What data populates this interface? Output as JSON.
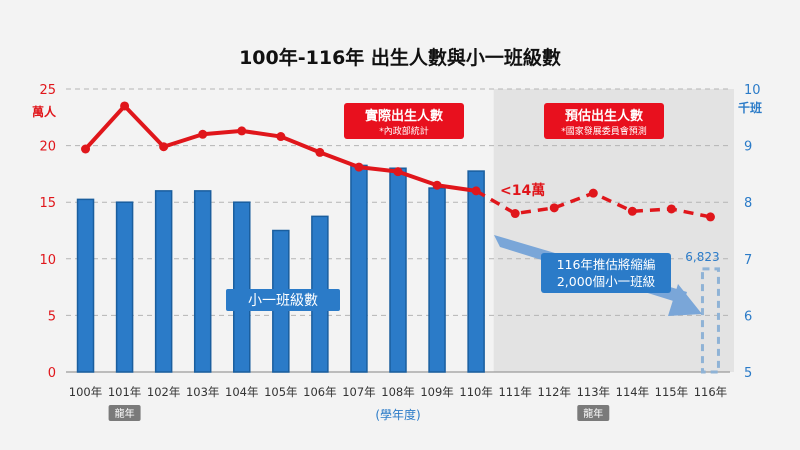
{
  "chart_data": {
    "type": "bar",
    "title": "100年-116年  出生人數與小一班級數",
    "categories": [
      "100年",
      "101年",
      "102年",
      "103年",
      "104年",
      "105年",
      "106年",
      "107年",
      "108年",
      "109年",
      "110年",
      "111年",
      "112年",
      "113年",
      "114年",
      "115年",
      "116年"
    ],
    "xlabel": "(學年度)",
    "y_left": {
      "unit": "萬人",
      "ylim": [
        0,
        25
      ],
      "ticks": [
        0,
        5,
        10,
        15,
        20,
        25
      ]
    },
    "y_right": {
      "unit": "千班",
      "ylim": [
        5,
        10
      ],
      "ticks": [
        5,
        6,
        7,
        8,
        9,
        10
      ]
    },
    "grid": true,
    "series": [
      {
        "name": "小一班級數",
        "type": "bar",
        "axis": "right",
        "values": [
          8.05,
          8.0,
          8.2,
          8.2,
          8.0,
          7.5,
          7.75,
          8.65,
          8.6,
          8.25,
          8.55,
          null,
          null,
          null,
          null,
          null,
          6.823
        ],
        "color": "#2b7bc8",
        "projected_bar_label": "6,823"
      },
      {
        "name": "出生人數",
        "type": "line",
        "axis": "left",
        "values": [
          19.7,
          23.5,
          19.9,
          21.0,
          21.3,
          20.8,
          19.4,
          18.1,
          17.7,
          16.5,
          16.0,
          14.0,
          14.5,
          15.8,
          14.2,
          14.4,
          13.7
        ],
        "actual_until_index": 10,
        "color": "#e0161b"
      }
    ],
    "annotations": {
      "actual_box": {
        "title": "實際出生人數",
        "sub": "*內政部統計"
      },
      "forecast_box": {
        "title": "預估出生人數",
        "sub": "*國家發展委員會預測"
      },
      "line_label": "<14萬",
      "bar_label": "小一班級數",
      "arrow_note_1": "116年推估將縮編",
      "arrow_note_2": "2,000個小一班級",
      "dragon_year_1": "龍年",
      "dragon_year_2": "龍年"
    },
    "colors": {
      "bar": "#2b7bc8",
      "bar_dark": "#1a5e9e",
      "line": "#e0161b",
      "forecast_bg": "#e3e3e3",
      "left_axis": "#e0161b",
      "right_axis": "#2b7bc8",
      "note_box": "#2b7bc8",
      "label_box": "#e8101e",
      "badge": "#7a7a7a"
    }
  }
}
